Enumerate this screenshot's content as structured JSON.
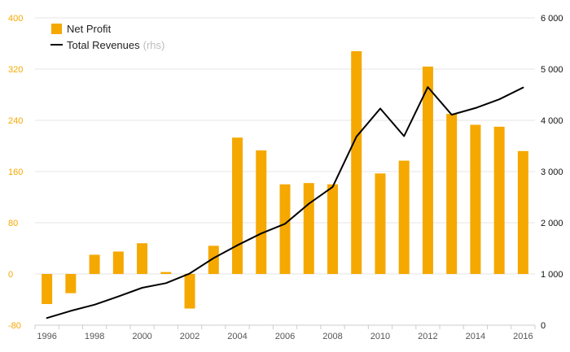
{
  "chart_data": {
    "type": "bar",
    "x": [
      1996,
      1997,
      1998,
      1999,
      2000,
      2001,
      2002,
      2003,
      2004,
      2005,
      2006,
      2007,
      2008,
      2009,
      2010,
      2011,
      2012,
      2013,
      2014,
      2015,
      2016
    ],
    "x_tick_labels": [
      "1996",
      "1998",
      "2000",
      "2002",
      "2004",
      "2006",
      "2008",
      "2010",
      "2012",
      "2014",
      "2016"
    ],
    "series": [
      {
        "name": "Net Profit",
        "type": "bar",
        "axis": "left",
        "color": "#f5a800",
        "values": [
          -47,
          -30,
          30,
          35,
          48,
          3,
          -54,
          44,
          213,
          193,
          140,
          142,
          140,
          348,
          157,
          177,
          324,
          250,
          233,
          230,
          192
        ]
      },
      {
        "name": "Total Revenues",
        "name_note": "(rhs)",
        "type": "line",
        "axis": "right",
        "color": "#000000",
        "values": [
          140,
          280,
          400,
          560,
          730,
          820,
          1010,
          1310,
          1560,
          1790,
          1980,
          2370,
          2700,
          3680,
          4230,
          3690,
          4650,
          4110,
          4240,
          4410,
          4640
        ]
      }
    ],
    "y_left": {
      "min": -80,
      "max": 400,
      "ticks": [
        -80,
        0,
        80,
        160,
        240,
        320,
        400
      ],
      "tick_labels": [
        "-80",
        "0",
        "80",
        "160",
        "240",
        "320",
        "400"
      ]
    },
    "y_right": {
      "min": 0,
      "max": 6000,
      "ticks": [
        0,
        1000,
        2000,
        3000,
        4000,
        5000,
        6000
      ],
      "tick_labels": [
        "0",
        "1 000",
        "2 000",
        "3 000",
        "4 000",
        "5 000",
        "6 000"
      ]
    },
    "grid": true,
    "legend_position": "top-left"
  }
}
